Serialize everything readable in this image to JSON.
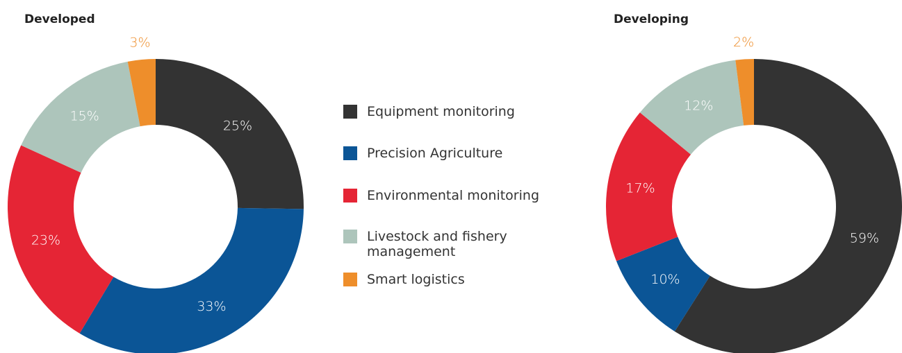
{
  "chart_data": [
    {
      "type": "pie",
      "title": "Developed",
      "categories": [
        "Equipment monitoring",
        "Precision Agriculture",
        "Environmental monitoring",
        "Livestock and fishery management",
        "Smart logistics"
      ],
      "values": [
        25,
        33,
        23,
        15,
        3
      ],
      "value_labels": [
        "25%",
        "33%",
        "23%",
        "15%",
        "3%"
      ],
      "colors": [
        "#333333",
        "#0b5596",
        "#e52535",
        "#adc5bb",
        "#ee8e2b"
      ]
    },
    {
      "type": "pie",
      "title": "Developing",
      "categories": [
        "Equipment monitoring",
        "Precision Agriculture",
        "Environmental monitoring",
        "Livestock and fishery management",
        "Smart logistics"
      ],
      "values": [
        59,
        10,
        17,
        12,
        2
      ],
      "value_labels": [
        "59%",
        "10%",
        "17%",
        "12%",
        "2%"
      ],
      "colors": [
        "#333333",
        "#0b5596",
        "#e52535",
        "#adc5bb",
        "#ee8e2b"
      ]
    }
  ]
}
